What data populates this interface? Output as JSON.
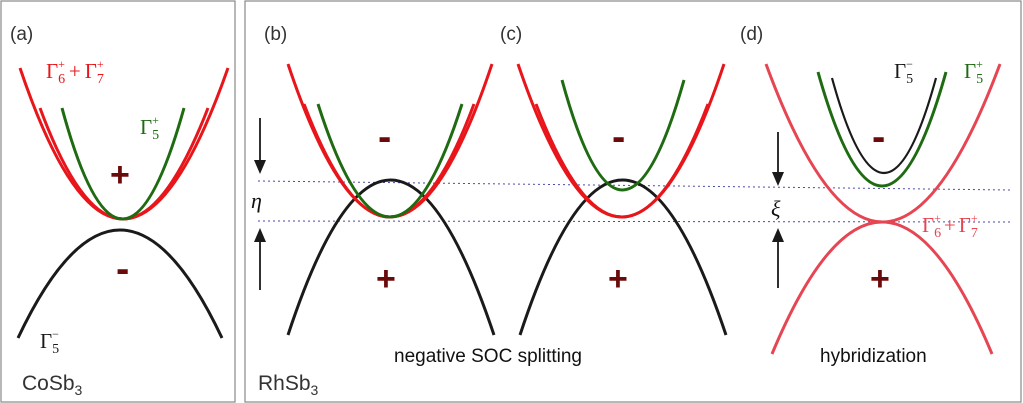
{
  "colors": {
    "red": "#e8161b",
    "lightred": "#e64552",
    "green": "#1e6b12",
    "black": "#1a1a1a",
    "sign": "#6b0a0a",
    "dotted": "#4a4aa8"
  },
  "panels": {
    "a": {
      "label": "(a)",
      "material": "CoSb",
      "material_sub": "3",
      "sign_top": "+",
      "sign_bottom": "-",
      "red_label": {
        "g1": "Γ",
        "g1_sub": "6",
        "g1_sup": "+",
        "plus": "+",
        "g2": "Γ",
        "g2_sub": "7",
        "g2_sup": "+"
      },
      "green_label": {
        "g": "Γ",
        "sub": "5",
        "sup": "+"
      },
      "black_label": {
        "g": "Γ",
        "sub": "5",
        "sup": "−"
      }
    },
    "b": {
      "label": "(b)",
      "material": "RhSb",
      "material_sub": "3",
      "sign_top": "-",
      "sign_bottom": "+",
      "eta": "η"
    },
    "c": {
      "label": "(c)",
      "sign_top": "-",
      "sign_bottom": "+",
      "caption": "negative SOC splitting"
    },
    "d": {
      "label": "(d)",
      "sign_top": "-",
      "sign_bottom": "+",
      "xi": "ξ",
      "caption": "hybridization",
      "black_label": {
        "g": "Γ",
        "sub": "5",
        "sup": "−"
      },
      "green_label": {
        "g": "Γ",
        "sub": "5",
        "sup": "+"
      },
      "red_label": {
        "g1": "Γ",
        "g1_sub": "6",
        "g1_sup": "+",
        "plus": "+",
        "g2": "Γ",
        "g2_sub": "7",
        "g2_sup": "+"
      }
    }
  }
}
